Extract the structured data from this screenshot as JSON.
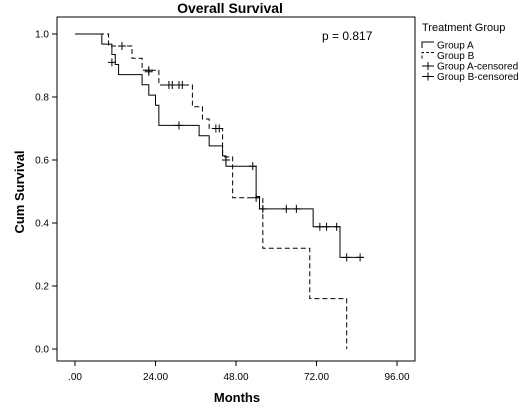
{
  "chart_data": {
    "type": "line",
    "title": "Overall Survival",
    "xlabel": "Months",
    "ylabel": "Cum Survival",
    "xlim": [
      0,
      96
    ],
    "ylim": [
      0,
      1
    ],
    "xticks": [
      ".00",
      "24.00",
      "48.00",
      "72.00",
      "96.00"
    ],
    "xtick_values": [
      0,
      24,
      48,
      72,
      96
    ],
    "yticks": [
      "0.0",
      "0.2",
      "0.4",
      "0.6",
      "0.8",
      "1.0"
    ],
    "ytick_values": [
      0,
      0.2,
      0.4,
      0.6,
      0.8,
      1.0
    ],
    "grid": false,
    "annotation": "p = 0.817",
    "legend_title": "Treatment Group",
    "legend_position": "right",
    "legend": [
      "Group A",
      "Group B",
      "Group A-censored",
      "Group B-censored"
    ],
    "series": [
      {
        "name": "Group A",
        "style": "solid",
        "color": "#000000",
        "steps": [
          [
            0,
            1.0
          ],
          [
            8,
            0.968
          ],
          [
            11,
            0.935
          ],
          [
            12,
            0.903
          ],
          [
            13,
            0.871
          ],
          [
            20,
            0.839
          ],
          [
            22,
            0.806
          ],
          [
            24,
            0.774
          ],
          [
            25,
            0.71
          ],
          [
            37,
            0.677
          ],
          [
            40,
            0.645
          ],
          [
            44,
            0.613
          ],
          [
            45,
            0.58
          ],
          [
            54,
            0.484
          ],
          [
            55,
            0.445
          ],
          [
            71,
            0.388
          ],
          [
            79,
            0.291
          ],
          [
            86,
            0.291
          ]
        ],
        "censored": [
          [
            11,
            0.91
          ],
          [
            22,
            0.88
          ],
          [
            31,
            0.71
          ],
          [
            45,
            0.6
          ],
          [
            53,
            0.58
          ],
          [
            56,
            0.445
          ],
          [
            63,
            0.445
          ],
          [
            66,
            0.445
          ],
          [
            78,
            0.388
          ],
          [
            81,
            0.291
          ]
        ]
      },
      {
        "name": "Group B",
        "style": "dashed",
        "color": "#000000",
        "steps": [
          [
            0,
            1.0
          ],
          [
            10,
            0.962
          ],
          [
            17,
            0.923
          ],
          [
            20,
            0.885
          ],
          [
            25,
            0.838
          ],
          [
            35,
            0.769
          ],
          [
            38,
            0.73
          ],
          [
            40,
            0.7
          ],
          [
            44,
            0.61
          ],
          [
            47,
            0.48
          ],
          [
            56,
            0.32
          ],
          [
            70,
            0.16
          ],
          [
            81,
            0.0
          ]
        ],
        "censored": [
          [
            14,
            0.962
          ],
          [
            22,
            0.885
          ],
          [
            28,
            0.838
          ],
          [
            29,
            0.838
          ],
          [
            31,
            0.838
          ],
          [
            32,
            0.838
          ],
          [
            42,
            0.7
          ],
          [
            43,
            0.7
          ],
          [
            54,
            0.48
          ],
          [
            73,
            0.388
          ],
          [
            75,
            0.388
          ],
          [
            85,
            0.291
          ]
        ]
      }
    ]
  }
}
